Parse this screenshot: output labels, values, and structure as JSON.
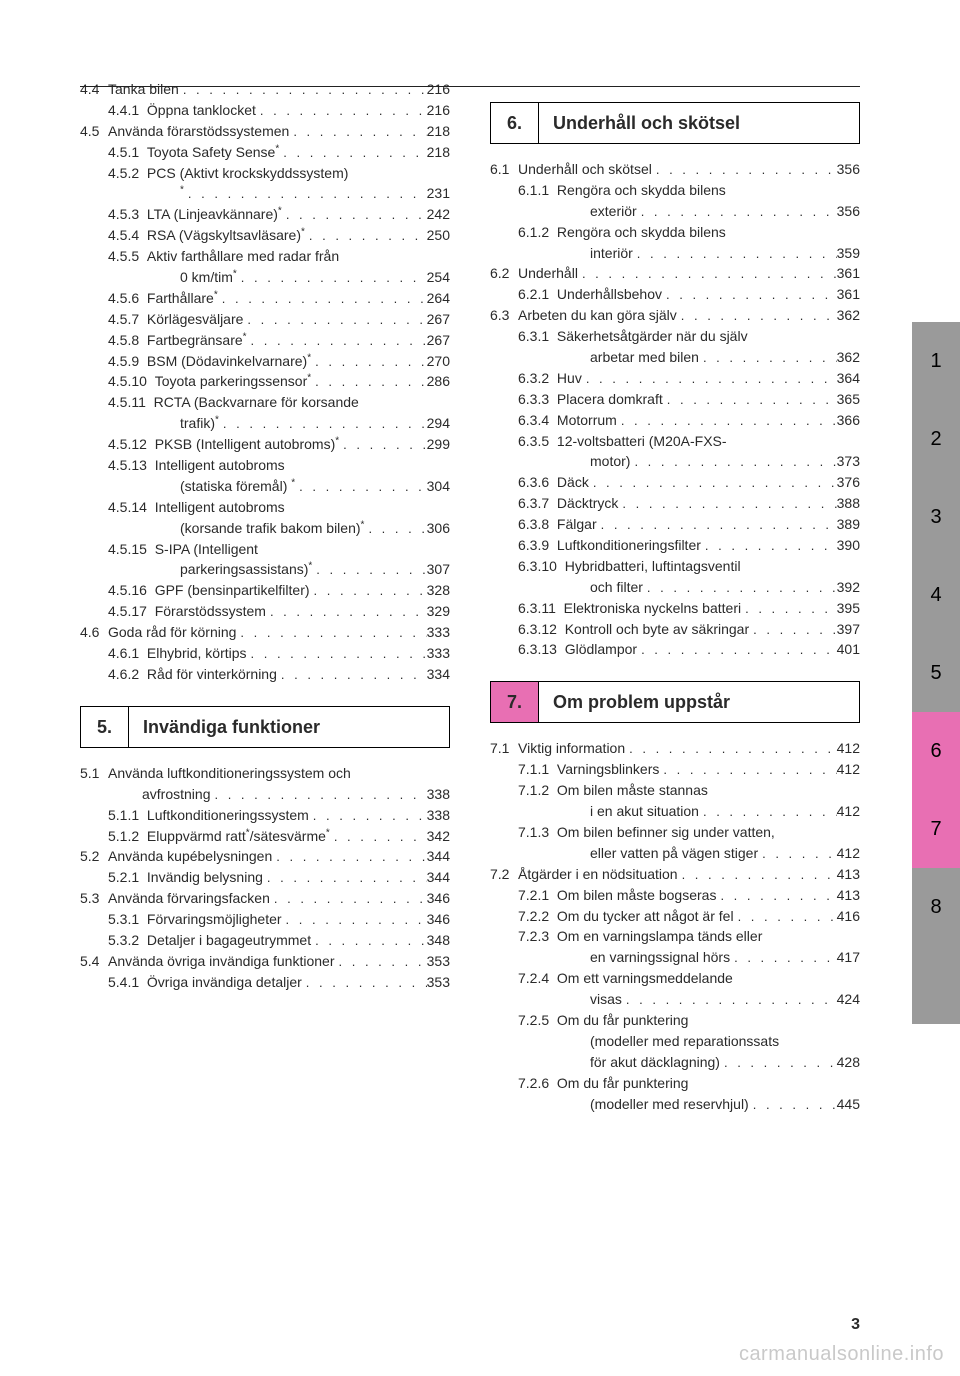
{
  "page_number": "3",
  "footer_url": "carmanualsonline.info",
  "leader_dots": ". . . . . . . . . . . . . . . . . . . . . . . . . . . . . . . . . . . . . . . .",
  "tabs": [
    {
      "n": "1",
      "style": "grey"
    },
    {
      "n": "2",
      "style": "grey"
    },
    {
      "n": "3",
      "style": "grey"
    },
    {
      "n": "4",
      "style": "grey"
    },
    {
      "n": "5",
      "style": "grey"
    },
    {
      "n": "6",
      "style": "hl"
    },
    {
      "n": "7",
      "style": "hl"
    },
    {
      "n": "8",
      "style": "grey"
    },
    {
      "n": "",
      "style": "blank"
    }
  ],
  "left_col": [
    {
      "type": "row",
      "indent": 0,
      "num": "4.4",
      "label": "Tanka bilen",
      "page": "216"
    },
    {
      "type": "row",
      "indent": 1,
      "num": "4.4.1",
      "label": "Öppna tanklocket",
      "page": "216"
    },
    {
      "type": "row",
      "indent": 0,
      "num": "4.5",
      "label": "Använda förarstödssystemen",
      "page": "218"
    },
    {
      "type": "row",
      "indent": 1,
      "num": "4.5.1",
      "label": "Toyota Safety Sense*",
      "page": "218"
    },
    {
      "type": "row_nopage",
      "indent": 1,
      "num": "4.5.2",
      "label": "PCS (Aktivt krockskyddssystem)"
    },
    {
      "type": "cont",
      "indent": 2,
      "label": "*",
      "page": "231"
    },
    {
      "type": "row",
      "indent": 1,
      "num": "4.5.3",
      "label": "LTA (Linjeavkännare)*",
      "page": "242"
    },
    {
      "type": "row",
      "indent": 1,
      "num": "4.5.4",
      "label": "RSA (Vägskyltsavläsare)*",
      "page": "250"
    },
    {
      "type": "row_nopage",
      "indent": 1,
      "num": "4.5.5",
      "label": "Aktiv farthållare med radar från"
    },
    {
      "type": "cont",
      "indent": 2,
      "label": "0 km/tim*",
      "page": "254"
    },
    {
      "type": "row",
      "indent": 1,
      "num": "4.5.6",
      "label": "Farthållare*",
      "page": "264"
    },
    {
      "type": "row",
      "indent": 1,
      "num": "4.5.7",
      "label": "Körlägesväljare",
      "page": "267"
    },
    {
      "type": "row",
      "indent": 1,
      "num": "4.5.8",
      "label": "Fartbegränsare*",
      "page": "267"
    },
    {
      "type": "row",
      "indent": 1,
      "num": "4.5.9",
      "label": "BSM (Dödavinkelvarnare)*",
      "page": "270"
    },
    {
      "type": "row",
      "indent": 1,
      "num": "4.5.10",
      "label": "Toyota parkeringssensor*",
      "page": "286"
    },
    {
      "type": "row_nopage",
      "indent": 1,
      "num": "4.5.11",
      "label": "RCTA (Backvarnare för korsande"
    },
    {
      "type": "cont",
      "indent": 2,
      "label": "trafik)*",
      "page": "294"
    },
    {
      "type": "row",
      "indent": 1,
      "num": "4.5.12",
      "label": "PKSB (Intelligent autobroms)*",
      "page": "299"
    },
    {
      "type": "row_nopage",
      "indent": 1,
      "num": "4.5.13",
      "label": "Intelligent autobroms"
    },
    {
      "type": "cont",
      "indent": 2,
      "label": "(statiska föremål) *",
      "page": "304"
    },
    {
      "type": "row_nopage",
      "indent": 1,
      "num": "4.5.14",
      "label": "Intelligent autobroms"
    },
    {
      "type": "cont",
      "indent": 2,
      "label": "(korsande trafik bakom bilen)*",
      "page": "306"
    },
    {
      "type": "row_nopage",
      "indent": 1,
      "num": "4.5.15",
      "label": "S-IPA (Intelligent"
    },
    {
      "type": "cont",
      "indent": 2,
      "label": "parkeringsassistans)*",
      "page": "307"
    },
    {
      "type": "row",
      "indent": 1,
      "num": "4.5.16",
      "label": "GPF (bensinpartikelfilter)",
      "page": "328"
    },
    {
      "type": "row",
      "indent": 1,
      "num": "4.5.17",
      "label": "Förarstödssystem",
      "page": "329"
    },
    {
      "type": "row",
      "indent": 0,
      "num": "4.6",
      "label": "Goda råd för körning",
      "page": "333"
    },
    {
      "type": "row",
      "indent": 1,
      "num": "4.6.1",
      "label": "Elhybrid, körtips",
      "page": "333"
    },
    {
      "type": "row",
      "indent": 1,
      "num": "4.6.2",
      "label": "Råd för vinterkörning",
      "page": "334"
    },
    {
      "type": "section",
      "num": "5.",
      "title": "Invändiga funktioner",
      "hl": false
    },
    {
      "type": "row_nopage",
      "indent": 0,
      "num": "5.1",
      "label": "Använda luftkonditioneringssystem och"
    },
    {
      "type": "cont",
      "indent": 1,
      "label": "avfrostning",
      "page": "338"
    },
    {
      "type": "row",
      "indent": 1,
      "num": "5.1.1",
      "label": "Luftkonditioneringssystem",
      "page": "338"
    },
    {
      "type": "row",
      "indent": 1,
      "num": "5.1.2",
      "label": "Eluppvärmd ratt*/sätesvärme*",
      "page": "342"
    },
    {
      "type": "row",
      "indent": 0,
      "num": "5.2",
      "label": "Använda kupébelysningen",
      "page": "344"
    },
    {
      "type": "row",
      "indent": 1,
      "num": "5.2.1",
      "label": "Invändig belysning",
      "page": "344"
    },
    {
      "type": "row",
      "indent": 0,
      "num": "5.3",
      "label": "Använda förvaringsfacken",
      "page": "346"
    },
    {
      "type": "row",
      "indent": 1,
      "num": "5.3.1",
      "label": "Förvaringsmöjligheter",
      "page": "346"
    },
    {
      "type": "row",
      "indent": 1,
      "num": "5.3.2",
      "label": "Detaljer i bagageutrymmet",
      "page": "348"
    },
    {
      "type": "row",
      "indent": 0,
      "num": "5.4",
      "label": "Använda övriga invändiga funktioner",
      "page": "353"
    },
    {
      "type": "row",
      "indent": 1,
      "num": "5.4.1",
      "label": "Övriga invändiga detaljer",
      "page": "353"
    }
  ],
  "right_col": [
    {
      "type": "section",
      "num": "6.",
      "title": "Underhåll och skötsel",
      "hl": false
    },
    {
      "type": "row",
      "indent": 0,
      "num": "6.1",
      "label": "Underhåll och skötsel",
      "page": "356"
    },
    {
      "type": "row_nopage",
      "indent": 1,
      "num": "6.1.1",
      "label": "Rengöra och skydda bilens"
    },
    {
      "type": "cont",
      "indent": 2,
      "label": "exteriör",
      "page": "356"
    },
    {
      "type": "row_nopage",
      "indent": 1,
      "num": "6.1.2",
      "label": "Rengöra och skydda bilens"
    },
    {
      "type": "cont",
      "indent": 2,
      "label": "interiör",
      "page": "359"
    },
    {
      "type": "row",
      "indent": 0,
      "num": "6.2",
      "label": "Underhåll",
      "page": "361"
    },
    {
      "type": "row",
      "indent": 1,
      "num": "6.2.1",
      "label": "Underhållsbehov",
      "page": "361"
    },
    {
      "type": "row",
      "indent": 0,
      "num": "6.3",
      "label": "Arbeten du kan göra själv",
      "page": "362"
    },
    {
      "type": "row_nopage",
      "indent": 1,
      "num": "6.3.1",
      "label": "Säkerhetsåtgärder när du själv"
    },
    {
      "type": "cont",
      "indent": 2,
      "label": "arbetar med bilen",
      "page": "362"
    },
    {
      "type": "row",
      "indent": 1,
      "num": "6.3.2",
      "label": "Huv",
      "page": "364"
    },
    {
      "type": "row",
      "indent": 1,
      "num": "6.3.3",
      "label": "Placera domkraft",
      "page": "365"
    },
    {
      "type": "row",
      "indent": 1,
      "num": "6.3.4",
      "label": "Motorrum",
      "page": "366"
    },
    {
      "type": "row_nopage",
      "indent": 1,
      "num": "6.3.5",
      "label": "12-voltsbatteri (M20A-FXS-"
    },
    {
      "type": "cont",
      "indent": 2,
      "label": "motor)",
      "page": "373"
    },
    {
      "type": "row",
      "indent": 1,
      "num": "6.3.6",
      "label": "Däck",
      "page": "376"
    },
    {
      "type": "row",
      "indent": 1,
      "num": "6.3.7",
      "label": "Däcktryck",
      "page": "388"
    },
    {
      "type": "row",
      "indent": 1,
      "num": "6.3.8",
      "label": "Fälgar",
      "page": "389"
    },
    {
      "type": "row",
      "indent": 1,
      "num": "6.3.9",
      "label": "Luftkonditioneringsfilter",
      "page": "390"
    },
    {
      "type": "row_nopage",
      "indent": 1,
      "num": "6.3.10",
      "label": "Hybridbatteri, luftintagsventil"
    },
    {
      "type": "cont",
      "indent": 2,
      "label": "och filter",
      "page": "392"
    },
    {
      "type": "row",
      "indent": 1,
      "num": "6.3.11",
      "label": "Elektroniska nyckelns batteri",
      "page": "395"
    },
    {
      "type": "row",
      "indent": 1,
      "num": "6.3.12",
      "label": "Kontroll och byte av säkringar",
      "page": "397"
    },
    {
      "type": "row",
      "indent": 1,
      "num": "6.3.13",
      "label": "Glödlampor",
      "page": "401"
    },
    {
      "type": "section",
      "num": "7.",
      "title": "Om problem uppstår",
      "hl": true
    },
    {
      "type": "row",
      "indent": 0,
      "num": "7.1",
      "label": "Viktig information",
      "page": "412"
    },
    {
      "type": "row",
      "indent": 1,
      "num": "7.1.1",
      "label": "Varningsblinkers",
      "page": "412"
    },
    {
      "type": "row_nopage",
      "indent": 1,
      "num": "7.1.2",
      "label": "Om bilen måste stannas"
    },
    {
      "type": "cont",
      "indent": 2,
      "label": "i en akut situation",
      "page": "412"
    },
    {
      "type": "row_nopage",
      "indent": 1,
      "num": "7.1.3",
      "label": "Om bilen befinner sig under vatten,"
    },
    {
      "type": "cont",
      "indent": 2,
      "label": "eller vatten på vägen stiger",
      "page": "412"
    },
    {
      "type": "row",
      "indent": 0,
      "num": "7.2",
      "label": "Åtgärder i en nödsituation",
      "page": "413"
    },
    {
      "type": "row",
      "indent": 1,
      "num": "7.2.1",
      "label": "Om bilen måste bogseras",
      "page": "413"
    },
    {
      "type": "row",
      "indent": 1,
      "num": "7.2.2",
      "label": "Om du tycker att något är fel",
      "page": "416"
    },
    {
      "type": "row_nopage",
      "indent": 1,
      "num": "7.2.3",
      "label": "Om en varningslampa tänds eller"
    },
    {
      "type": "cont",
      "indent": 2,
      "label": "en varningssignal hörs",
      "page": "417"
    },
    {
      "type": "row_nopage",
      "indent": 1,
      "num": "7.2.4",
      "label": "Om ett varningsmeddelande"
    },
    {
      "type": "cont",
      "indent": 2,
      "label": "visas",
      "page": "424"
    },
    {
      "type": "row_nopage",
      "indent": 1,
      "num": "7.2.5",
      "label": "Om du får punktering"
    },
    {
      "type": "cont_nopage",
      "indent": 2,
      "label": "(modeller med reparationssats"
    },
    {
      "type": "cont",
      "indent": 2,
      "label": "för akut däcklagning)",
      "page": "428"
    },
    {
      "type": "row_nopage",
      "indent": 1,
      "num": "7.2.6",
      "label": "Om du får punktering"
    },
    {
      "type": "cont",
      "indent": 2,
      "label": "(modeller med reservhjul)",
      "page": "445"
    }
  ]
}
